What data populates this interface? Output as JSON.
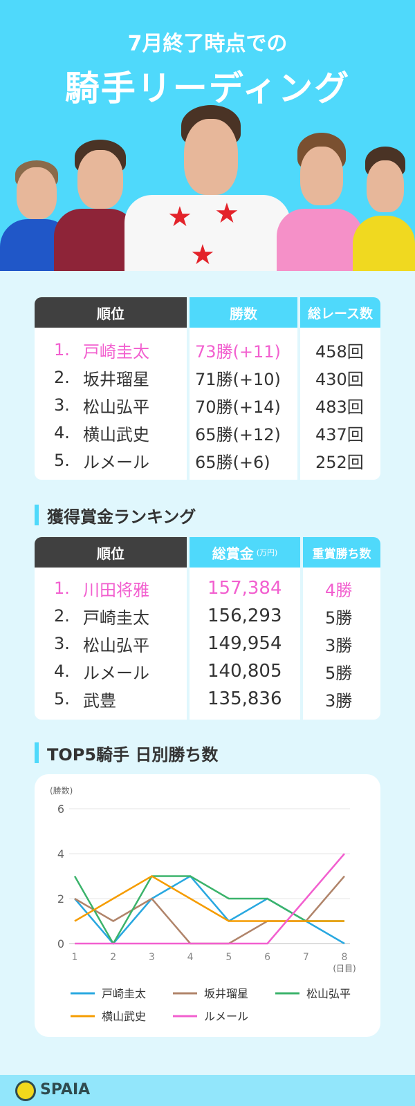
{
  "hero": {
    "subtitle": "7月終了時点での",
    "title": "騎手リーディング"
  },
  "leading_table": {
    "headers": [
      "順位",
      "勝数",
      "総レース数"
    ],
    "rows": [
      {
        "rank": "1.",
        "name": "戸崎圭太",
        "wins": "73勝(+11)",
        "races": "458回",
        "highlight": true
      },
      {
        "rank": "2.",
        "name": "坂井瑠星",
        "wins": "71勝(+10)",
        "races": "430回",
        "highlight": false
      },
      {
        "rank": "3.",
        "name": "松山弘平",
        "wins": "70勝(+14)",
        "races": "483回",
        "highlight": false
      },
      {
        "rank": "4.",
        "name": "横山武史",
        "wins": "65勝(+12)",
        "races": "437回",
        "highlight": false
      },
      {
        "rank": "5.",
        "name": "ルメール",
        "wins": "65勝(+6)",
        "races": "252回",
        "highlight": false
      }
    ]
  },
  "prize_section": {
    "title": "獲得賞金ランキング",
    "headers": [
      "順位",
      "総賞金",
      "(万円)",
      "重賞勝ち数"
    ],
    "rows": [
      {
        "rank": "1.",
        "name": "川田将雅",
        "prize": "157,384",
        "graded": "4勝",
        "highlight": true
      },
      {
        "rank": "2.",
        "name": "戸崎圭太",
        "prize": "156,293",
        "graded": "5勝",
        "highlight": false
      },
      {
        "rank": "3.",
        "name": "松山弘平",
        "prize": "149,954",
        "graded": "3勝",
        "highlight": false
      },
      {
        "rank": "4.",
        "name": "ルメール",
        "prize": "140,805",
        "graded": "5勝",
        "highlight": false
      },
      {
        "rank": "5.",
        "name": "武豊",
        "prize": "135,836",
        "graded": "3勝",
        "highlight": false
      }
    ]
  },
  "chart_section": {
    "title": "TOP5騎手 日別勝ち数"
  },
  "chart_data": {
    "type": "line",
    "title": "TOP5騎手 日別勝ち数",
    "xlabel": "(日目)",
    "ylabel": "(勝数)",
    "x": [
      1,
      2,
      3,
      4,
      5,
      6,
      7,
      8
    ],
    "yticks": [
      0,
      2,
      4,
      6
    ],
    "ylim": [
      0,
      6
    ],
    "grid": true,
    "legend_position": "bottom",
    "series": [
      {
        "name": "戸崎圭太",
        "color": "#29a8e0",
        "values": [
          2,
          0,
          2,
          3,
          1,
          2,
          1,
          0
        ]
      },
      {
        "name": "坂井瑠星",
        "color": "#b0846a",
        "values": [
          2,
          1,
          2,
          0,
          0,
          1,
          1,
          3
        ]
      },
      {
        "name": "松山弘平",
        "color": "#3bb36b",
        "values": [
          3,
          0,
          3,
          3,
          2,
          2,
          1,
          1
        ]
      },
      {
        "name": "横山武史",
        "color": "#f59c00",
        "values": [
          1,
          2,
          3,
          2,
          1,
          1,
          1,
          1
        ]
      },
      {
        "name": "ルメール",
        "color": "#f25fcf",
        "values": [
          0,
          0,
          0,
          0,
          0,
          0,
          2,
          4
        ]
      }
    ]
  },
  "colors": {
    "accent": "#4fd9fb",
    "highlight": "#f25fcf",
    "header_dark": "#404040",
    "background": "#e0f7fd"
  },
  "footer": {
    "brand": "SPAIA"
  }
}
